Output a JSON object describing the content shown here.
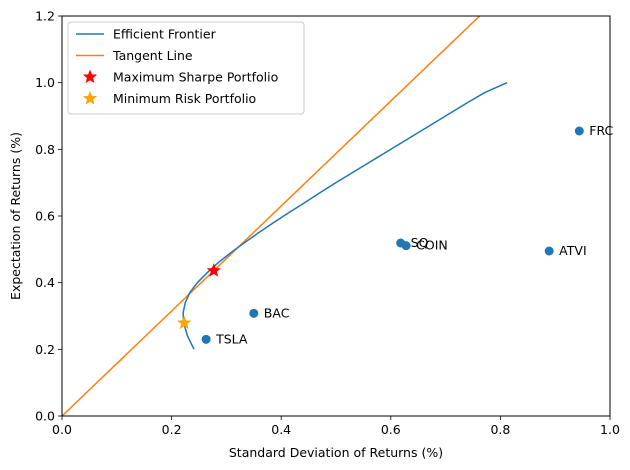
{
  "chart_data": {
    "type": "scatter",
    "title": "",
    "xlabel": "Standard Deviation of Returns (%)",
    "ylabel": "Expectation of Returns (%)",
    "xlim": [
      0.0,
      1.0
    ],
    "ylim": [
      0.0,
      1.2
    ],
    "xticks": [
      "0.0",
      "0.2",
      "0.4",
      "0.6",
      "0.8",
      "1.0"
    ],
    "yticks": [
      "0.0",
      "0.2",
      "0.4",
      "0.6",
      "0.8",
      "1.0",
      "1.2"
    ],
    "grid": false,
    "legend_position": "upper-left",
    "colors": {
      "frontier": "#1f77b4",
      "tangent": "#ff7f0e",
      "assets": "#1f77b4",
      "max_sharpe": "#ff0000",
      "min_risk": "#ffa500"
    },
    "series": [
      {
        "name": "Efficient Frontier",
        "type": "line",
        "x": [
          0.241,
          0.229,
          0.222,
          0.221,
          0.225,
          0.233,
          0.247,
          0.265,
          0.285,
          0.308,
          0.333,
          0.359,
          0.386,
          0.414,
          0.443,
          0.471,
          0.5,
          0.53,
          0.56,
          0.59,
          0.62,
          0.65,
          0.68,
          0.71,
          0.74,
          0.771,
          0.812
        ],
        "y": [
          0.2,
          0.24,
          0.28,
          0.31,
          0.34,
          0.37,
          0.4,
          0.43,
          0.46,
          0.49,
          0.52,
          0.55,
          0.58,
          0.61,
          0.64,
          0.67,
          0.7,
          0.73,
          0.76,
          0.79,
          0.82,
          0.85,
          0.88,
          0.91,
          0.94,
          0.97,
          1.0
        ]
      },
      {
        "name": "Tangent Line",
        "type": "line",
        "x": [
          0.0,
          0.762
        ],
        "y": [
          0.0,
          1.2
        ]
      },
      {
        "name": "Maximum Sharpe Portfolio",
        "type": "marker",
        "marker": "star",
        "x": [
          0.277
        ],
        "y": [
          0.436
        ]
      },
      {
        "name": "Minimum Risk Portfolio",
        "type": "marker",
        "marker": "star",
        "x": [
          0.223
        ],
        "y": [
          0.279
        ]
      }
    ],
    "assets": [
      {
        "label": "FRC",
        "x": 0.944,
        "y": 0.855
      },
      {
        "label": "SQ",
        "x": 0.618,
        "y": 0.519
      },
      {
        "label": "COIN",
        "x": 0.628,
        "y": 0.511
      },
      {
        "label": "ATVI",
        "x": 0.889,
        "y": 0.495
      },
      {
        "label": "BAC",
        "x": 0.35,
        "y": 0.308
      },
      {
        "label": "TSLA",
        "x": 0.263,
        "y": 0.23
      }
    ],
    "legend": [
      {
        "label": "Efficient Frontier",
        "kind": "line",
        "color": "#1f77b4"
      },
      {
        "label": "Tangent Line",
        "kind": "line",
        "color": "#ff7f0e"
      },
      {
        "label": "Maximum Sharpe Portfolio",
        "kind": "star",
        "color": "#ff0000"
      },
      {
        "label": "Minimum Risk Portfolio",
        "kind": "star",
        "color": "#ffa500"
      }
    ]
  }
}
